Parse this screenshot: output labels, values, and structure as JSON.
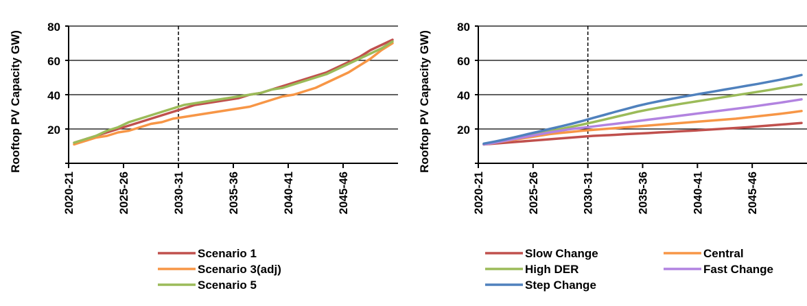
{
  "chart_data": [
    {
      "type": "line",
      "ylabel": "Rooftop PV Capacity GW)",
      "xlabel": "",
      "ylim": [
        0,
        80
      ],
      "yticks": [
        20,
        40,
        60,
        80
      ],
      "xticks": [
        "2020-21",
        "2025-26",
        "2030-31",
        "2035-36",
        "2040-41",
        "2045-46"
      ],
      "x": [
        "2020-21",
        "2021-22",
        "2022-23",
        "2023-24",
        "2024-25",
        "2025-26",
        "2026-27",
        "2027-28",
        "2028-29",
        "2029-30",
        "2030-31",
        "2031-32",
        "2032-33",
        "2033-34",
        "2034-35",
        "2035-36",
        "2036-37",
        "2037-38",
        "2038-39",
        "2039-40",
        "2040-41",
        "2041-42",
        "2042-43",
        "2043-44",
        "2044-45",
        "2045-46",
        "2046-47",
        "2047-48",
        "2048-49",
        "2049-50"
      ],
      "grid": "horizontal",
      "reference_line": "2030-31",
      "legend_position": "bottom",
      "series": [
        {
          "name": "Scenario 1",
          "color": "#C0504D",
          "values": [
            12,
            14,
            16,
            18,
            20,
            22,
            24,
            26,
            28,
            30,
            32,
            34,
            35,
            36,
            37,
            38,
            40,
            41,
            43,
            45,
            47,
            49,
            51,
            53,
            56,
            59,
            62,
            66,
            69,
            72
          ]
        },
        {
          "name": "Scenario 3(adj)",
          "color": "#F79646",
          "values": [
            11,
            13,
            15,
            16,
            18,
            19,
            21,
            23,
            24,
            26,
            27,
            28,
            29,
            30,
            31,
            32,
            33,
            35,
            37,
            39,
            40,
            42,
            44,
            47,
            50,
            53,
            57,
            61,
            66,
            70
          ]
        },
        {
          "name": "Scenario 5",
          "color": "#9BBB59",
          "values": [
            12,
            14,
            16,
            19,
            21,
            24,
            26,
            28,
            30,
            32,
            34,
            35,
            36,
            37,
            38,
            39,
            40,
            41,
            43,
            44,
            46,
            48,
            50,
            52,
            55,
            58,
            61,
            64,
            67,
            71
          ]
        }
      ]
    },
    {
      "type": "line",
      "ylabel": "Rooftop PV Capacity GW)",
      "xlabel": "",
      "ylim": [
        0,
        80
      ],
      "yticks": [
        20,
        40,
        60,
        80
      ],
      "xticks": [
        "2020-21",
        "2025-26",
        "2030-31",
        "2035-36",
        "2040-41",
        "2045-46"
      ],
      "x": [
        "2020-21",
        "2021-22",
        "2022-23",
        "2023-24",
        "2024-25",
        "2025-26",
        "2026-27",
        "2027-28",
        "2028-29",
        "2029-30",
        "2030-31",
        "2031-32",
        "2032-33",
        "2033-34",
        "2034-35",
        "2035-36",
        "2036-37",
        "2037-38",
        "2038-39",
        "2039-40",
        "2040-41",
        "2041-42",
        "2042-43",
        "2043-44",
        "2044-45",
        "2045-46",
        "2046-47",
        "2047-48",
        "2048-49",
        "2049-50"
      ],
      "grid": "horizontal",
      "reference_line": "2030-31",
      "legend_position": "bottom",
      "series": [
        {
          "name": "Slow Change",
          "color": "#C0504D",
          "values": [
            11,
            11.5,
            12,
            12.5,
            13,
            13.5,
            14,
            14.5,
            15,
            15.5,
            16,
            16.3,
            16.6,
            17,
            17.3,
            17.6,
            18,
            18.3,
            18.7,
            19,
            19.4,
            19.8,
            20.2,
            20.6,
            21,
            21.5,
            22,
            22.5,
            23,
            23.5
          ]
        },
        {
          "name": "Central",
          "color": "#F79646",
          "values": [
            11,
            12,
            13,
            14,
            15,
            16,
            17,
            17.7,
            18.3,
            19,
            19.5,
            20,
            20.5,
            21,
            21.5,
            22,
            22.5,
            23,
            23.5,
            24,
            24.5,
            25,
            25.5,
            26,
            26.7,
            27.4,
            28.1,
            28.8,
            29.6,
            30.5
          ]
        },
        {
          "name": "High DER",
          "color": "#9BBB59",
          "values": [
            11,
            12,
            13.3,
            14.6,
            16,
            17.3,
            18.6,
            20,
            21.3,
            22.6,
            24,
            25.5,
            27,
            28.5,
            30,
            31.3,
            32.5,
            33.6,
            34.7,
            35.7,
            36.7,
            37.7,
            38.7,
            39.7,
            40.7,
            41.7,
            42.7,
            43.8,
            44.9,
            46
          ]
        },
        {
          "name": "Fast Change",
          "color": "#B283E0",
          "values": [
            11,
            12,
            13.2,
            14.4,
            15.6,
            16.8,
            18,
            19,
            20,
            20.7,
            21.5,
            22.3,
            23,
            23.8,
            24.6,
            25.4,
            26.2,
            27,
            27.8,
            28.6,
            29.4,
            30.2,
            31,
            31.8,
            32.6,
            33.5,
            34.4,
            35.3,
            36.3,
            37.3
          ]
        },
        {
          "name": "Step Change",
          "color": "#4F81BD",
          "values": [
            11.5,
            12.7,
            14,
            15.5,
            17,
            18.5,
            20,
            21.5,
            23,
            24.7,
            26.5,
            28.2,
            30,
            31.7,
            33.4,
            34.9,
            36.2,
            37.4,
            38.6,
            39.7,
            40.8,
            41.9,
            43,
            44.1,
            45.2,
            46.3,
            47.5,
            48.7,
            50,
            51.5
          ]
        }
      ]
    }
  ]
}
